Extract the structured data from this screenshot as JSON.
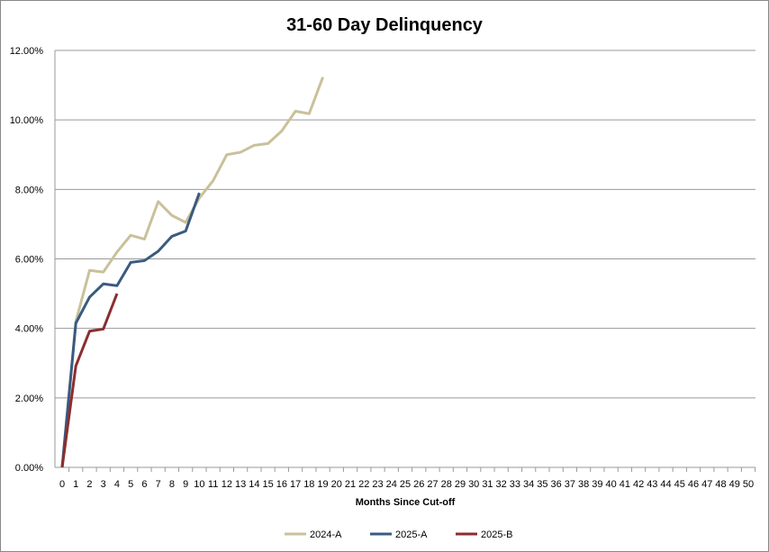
{
  "chart_data": {
    "type": "line",
    "title": "31-60 Day Delinquency",
    "xlabel": "Months Since Cut-off",
    "ylabel": "",
    "xlim": [
      0,
      50
    ],
    "ylim": [
      0,
      12
    ],
    "yticks": [
      "0.00%",
      "2.00%",
      "4.00%",
      "6.00%",
      "8.00%",
      "10.00%",
      "12.00%"
    ],
    "grid": "horizontal",
    "legend": "bottom",
    "series": [
      {
        "name": "2024-A",
        "color": "#C9C19B",
        "values": [
          0,
          4.2,
          5.67,
          5.62,
          6.2,
          6.68,
          6.57,
          7.65,
          7.25,
          7.05,
          7.75,
          8.25,
          9.0,
          9.07,
          9.27,
          9.32,
          9.68,
          10.25,
          10.18,
          11.23
        ]
      },
      {
        "name": "2025-A",
        "color": "#3A5A80",
        "values": [
          0,
          4.15,
          4.9,
          5.28,
          5.23,
          5.9,
          5.95,
          6.22,
          6.65,
          6.8,
          7.9
        ]
      },
      {
        "name": "2025-B",
        "color": "#8B2E2E",
        "values": [
          0,
          2.92,
          3.92,
          3.98,
          5.0
        ]
      }
    ]
  }
}
